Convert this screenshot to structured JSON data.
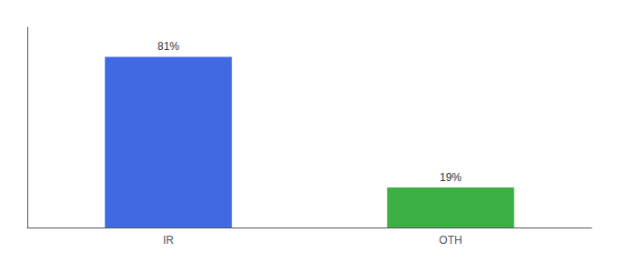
{
  "chart_data": {
    "type": "bar",
    "categories": [
      "IR",
      "OTH"
    ],
    "values": [
      81,
      19
    ],
    "value_labels": [
      "81%",
      "19%"
    ],
    "colors": [
      "#4169e1",
      "#3cb043"
    ],
    "ylim": [
      0,
      95
    ],
    "data_labels": true,
    "tick_labels": "x",
    "grid": false
  }
}
